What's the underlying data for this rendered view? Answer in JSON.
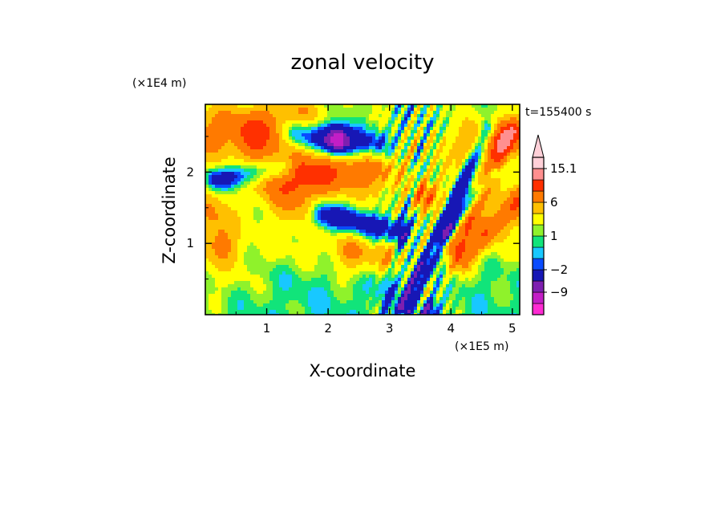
{
  "chart_data": {
    "type": "heatmap",
    "title": "zonal velocity",
    "xlabel": "X-coordinate",
    "ylabel": "Z-coordinate",
    "x_unit": "(×1E5 m)",
    "y_unit": "(×1E4 m)",
    "time_label": "t=155400 s",
    "xlim": [
      0,
      5.12
    ],
    "ylim": [
      0,
      2.95
    ],
    "x_ticks": [
      1,
      2,
      3,
      4,
      5
    ],
    "x_tick_labels": [
      "1",
      "2",
      "3",
      "4",
      "5"
    ],
    "y_ticks": [
      1,
      2
    ],
    "y_tick_labels": [
      "1",
      "2"
    ],
    "colorbar": {
      "levels": [
        -15,
        -12,
        -9,
        -6,
        -2,
        -1,
        0,
        1,
        2,
        4,
        6,
        9,
        12,
        15.1
      ],
      "colors": [
        "#ff2bd3",
        "#c31ec6",
        "#7e1fb0",
        "#1717b5",
        "#0a4cff",
        "#18c8ff",
        "#11e47a",
        "#8ff22b",
        "#ffff00",
        "#ffc000",
        "#ff7a00",
        "#ff3000",
        "#ff8f8f",
        "#ffd0d8"
      ],
      "labels": [
        {
          "value": -9,
          "text": "−9"
        },
        {
          "value": -2,
          "text": "−2"
        },
        {
          "value": 1,
          "text": "1"
        },
        {
          "value": 6,
          "text": "6"
        },
        {
          "value": 15.1,
          "text": "15.1"
        }
      ],
      "extend": "max"
    },
    "grid": false,
    "legend": "colorbar-right",
    "field_features": [
      {
        "kind": "background",
        "value": 0.5
      },
      {
        "kind": "band",
        "x0": 0.0,
        "z0": 0.6,
        "x1": 5.1,
        "z1": 1.2,
        "width": 0.55,
        "value": 1.8
      },
      {
        "kind": "band",
        "x0": 0.0,
        "z0": 2.1,
        "x1": 5.1,
        "z1": 2.2,
        "width": 0.9,
        "value": 2.8
      },
      {
        "kind": "band",
        "x0": 0.0,
        "z0": 2.6,
        "x1": 1.6,
        "z1": 2.75,
        "width": 0.35,
        "value": 4.5
      },
      {
        "kind": "band",
        "x0": 1.5,
        "z0": 2.55,
        "x1": 2.8,
        "z1": 2.35,
        "width": 0.22,
        "value": -7
      },
      {
        "kind": "band",
        "x0": 0.15,
        "z0": 1.9,
        "x1": 1.3,
        "z1": 2.05,
        "width": 0.17,
        "value": -6
      },
      {
        "kind": "band",
        "x0": 1.9,
        "z0": 1.4,
        "x1": 3.2,
        "z1": 1.15,
        "width": 0.2,
        "value": -7
      },
      {
        "kind": "band",
        "x0": 1.1,
        "z0": 1.95,
        "x1": 2.7,
        "z1": 2.05,
        "width": 0.3,
        "value": 5.5
      },
      {
        "kind": "band",
        "x0": 1.1,
        "z0": 0.55,
        "x1": 2.9,
        "z1": 0.55,
        "width": 0.35,
        "value": -1.2
      },
      {
        "kind": "band",
        "x0": 3.25,
        "z0": 0.1,
        "x1": 4.6,
        "z1": 2.6,
        "width": 0.12,
        "value": -7
      },
      {
        "kind": "band",
        "x0": 3.7,
        "z0": 0.3,
        "x1": 5.0,
        "z1": 2.6,
        "width": 0.14,
        "value": 6
      },
      {
        "kind": "band",
        "x0": 3.9,
        "z0": 1.1,
        "x1": 4.7,
        "z1": 2.0,
        "width": 0.1,
        "value": -6
      },
      {
        "kind": "band",
        "x0": 4.2,
        "z0": 0.8,
        "x1": 5.1,
        "z1": 1.6,
        "width": 0.18,
        "value": 5.5
      },
      {
        "kind": "band",
        "x0": 2.9,
        "z0": 0.0,
        "x1": 3.6,
        "z1": 2.7,
        "width": 0.08,
        "value": -3
      },
      {
        "kind": "band",
        "x0": 3.6,
        "z0": 0.0,
        "x1": 3.9,
        "z1": 0.8,
        "width": 0.12,
        "value": -6
      },
      {
        "kind": "band",
        "x0": 4.4,
        "z0": 2.4,
        "x1": 5.1,
        "z1": 2.55,
        "width": 0.25,
        "value": 5
      },
      {
        "kind": "blob",
        "x": 0.25,
        "z": 1.0,
        "r": 0.3,
        "value": 4.5
      },
      {
        "kind": "blob",
        "x": 0.1,
        "z": 1.4,
        "r": 0.3,
        "value": 3.5
      },
      {
        "kind": "blob",
        "x": 0.8,
        "z": 2.45,
        "r": 0.3,
        "value": 4.5
      },
      {
        "kind": "blob",
        "x": 2.4,
        "z": 0.85,
        "r": 0.35,
        "value": 4
      },
      {
        "kind": "blob",
        "x": 3.0,
        "z": 0.85,
        "r": 0.25,
        "value": 4.5
      },
      {
        "kind": "blob",
        "x": 1.5,
        "z": 1.65,
        "r": 0.45,
        "value": 3.5
      },
      {
        "kind": "blob",
        "x": 2.15,
        "z": 2.45,
        "r": 0.2,
        "value": -9.5
      },
      {
        "kind": "blob",
        "x": 3.2,
        "z": 2.7,
        "r": 0.25,
        "value": -2
      },
      {
        "kind": "blob",
        "x": 4.7,
        "z": 0.55,
        "r": 0.25,
        "value": -0.3
      },
      {
        "kind": "blob",
        "x": 1.7,
        "z": 0.12,
        "r": 0.5,
        "value": -0.4
      },
      {
        "kind": "blob",
        "x": 5.0,
        "z": 2.15,
        "r": 0.25,
        "value": -0.5
      },
      {
        "kind": "blob",
        "x": 0.55,
        "z": 0.05,
        "r": 0.25,
        "value": -0.4
      },
      {
        "kind": "blob",
        "x": 3.55,
        "z": 1.65,
        "r": 0.2,
        "value": 6
      }
    ]
  }
}
